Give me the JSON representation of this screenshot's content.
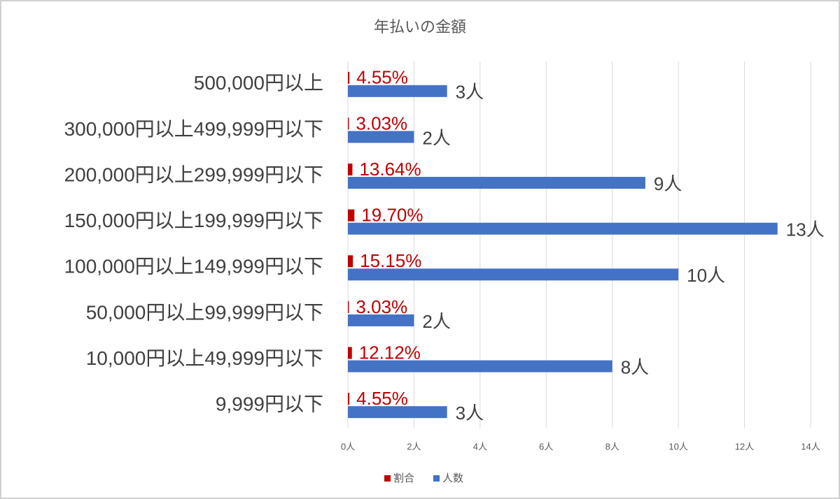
{
  "chart_data": {
    "type": "hbar",
    "title": "年払いの金額",
    "categories": [
      "500,000円以上",
      "300,000円以上499,999円以下",
      "200,000円以上299,999円以下",
      "150,000円以上199,999円以下",
      "100,000円以上149,999円以下",
      "50,000円以上99,999円以下",
      "10,000円以上49,999円以下",
      "9,999円以下"
    ],
    "series": [
      {
        "name": "割合",
        "color": "#c00000",
        "values": [
          0.0455,
          0.0303,
          0.1364,
          0.197,
          0.1515,
          0.0303,
          0.1212,
          0.0455
        ],
        "value_labels": [
          "4.55%",
          "3.03%",
          "13.64%",
          "19.70%",
          "15.15%",
          "3.03%",
          "12.12%",
          "4.55%"
        ]
      },
      {
        "name": "人数",
        "color": "#4472c4",
        "values": [
          3,
          2,
          9,
          13,
          10,
          2,
          8,
          3
        ],
        "value_labels": [
          "3人",
          "2人",
          "9人",
          "13人",
          "10人",
          "2人",
          "8人",
          "3人"
        ]
      }
    ],
    "xlim": [
      0,
      14
    ],
    "xticks": [
      {
        "value": 0,
        "label": "0人"
      },
      {
        "value": 2,
        "label": "2人"
      },
      {
        "value": 4,
        "label": "4人"
      },
      {
        "value": 6,
        "label": "6人"
      },
      {
        "value": 8,
        "label": "8人"
      },
      {
        "value": 10,
        "label": "10人"
      },
      {
        "value": 12,
        "label": "12人"
      },
      {
        "value": 14,
        "label": "14人"
      }
    ],
    "grid": true
  }
}
